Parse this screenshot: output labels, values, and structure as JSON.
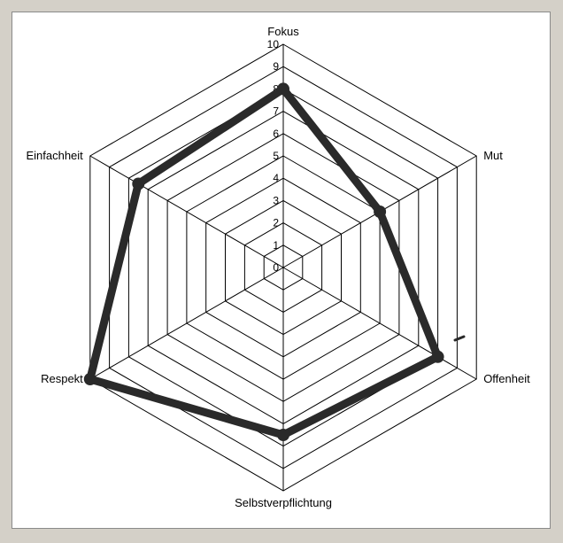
{
  "chart_data": {
    "type": "radar",
    "axes": [
      "Fokus",
      "Mut",
      "Offenheit",
      "Selbstverpflichtung",
      "Respekt",
      "Einfachheit"
    ],
    "ticks": [
      "0",
      "1",
      "2",
      "3",
      "4",
      "5",
      "6",
      "7",
      "8",
      "9",
      "10"
    ],
    "rlim": [
      0,
      10
    ],
    "series": [
      {
        "values": [
          8.0,
          5.0,
          8.0,
          7.5,
          10.0,
          7.5
        ]
      }
    ],
    "grid": true
  },
  "colors": {
    "background": "#d4d0c8",
    "panel": "#ffffff",
    "grid": "#000000",
    "series": "#2a2a2a"
  }
}
